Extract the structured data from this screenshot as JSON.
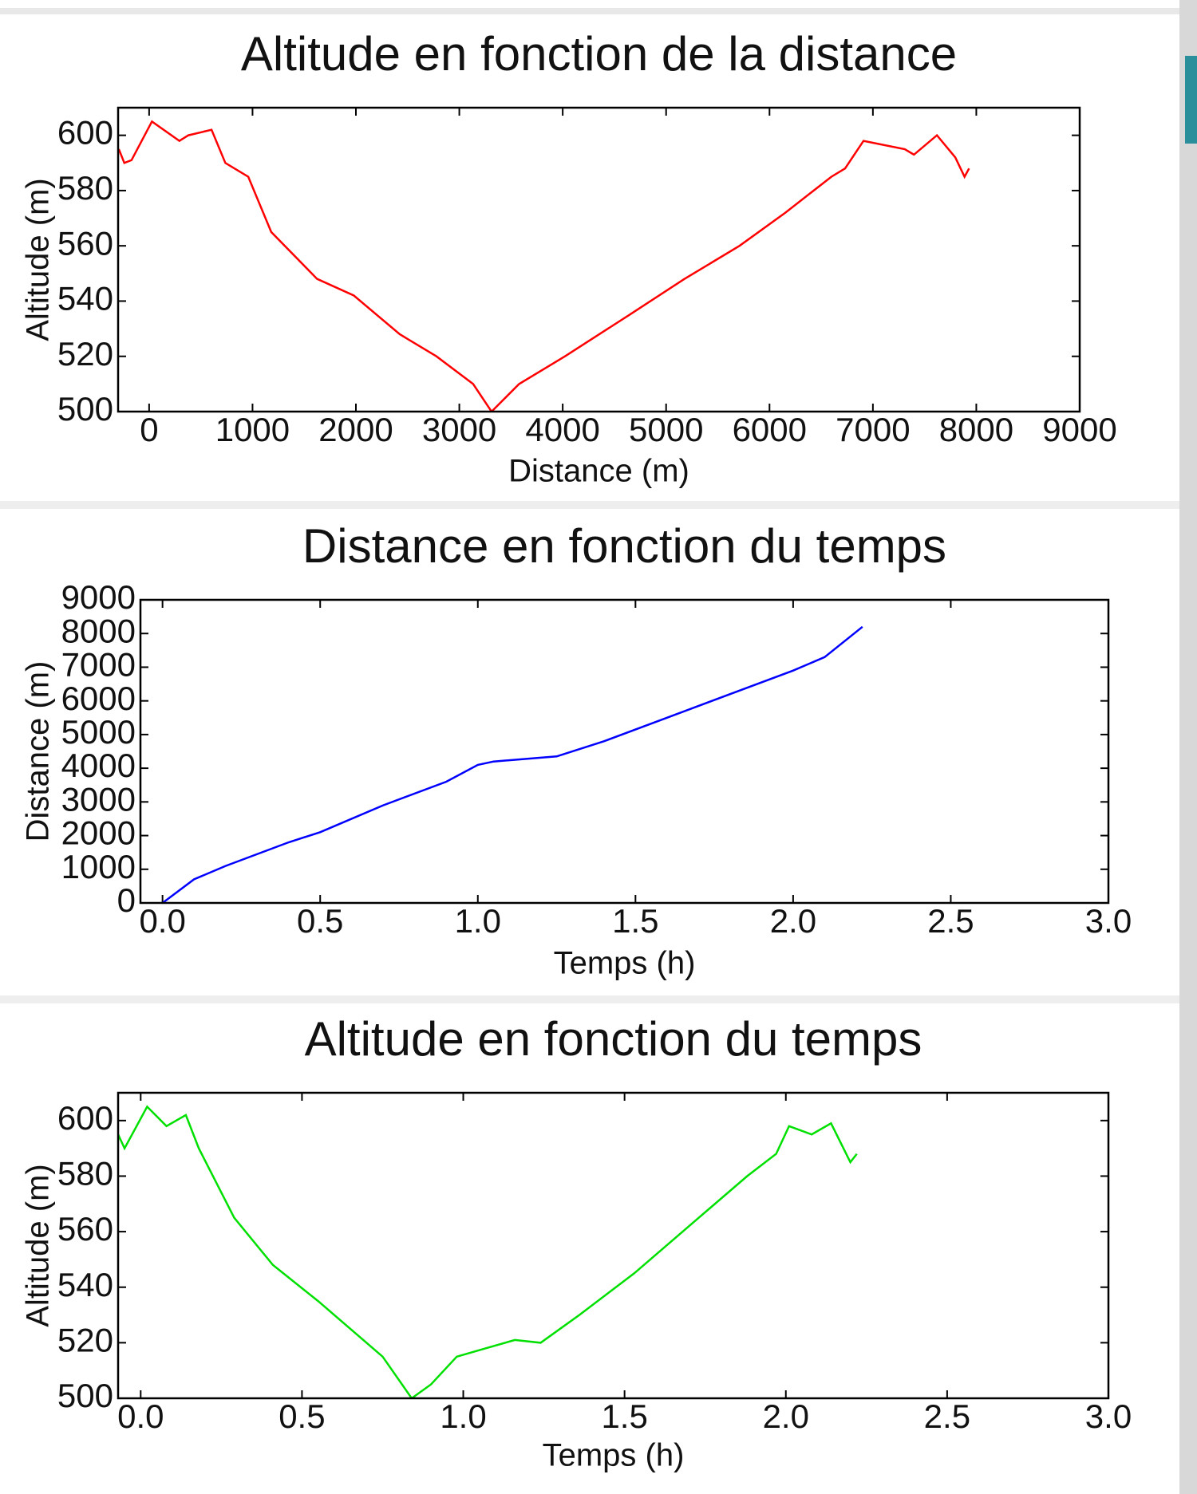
{
  "chart_data": [
    {
      "type": "line",
      "title": "Altitude en fonction de la distance",
      "x_label": "Distance (m)",
      "y_label": "Altitude (m)",
      "xlim": [
        -300,
        9000
      ],
      "ylim": [
        500,
        610
      ],
      "xticks": [
        0,
        1000,
        2000,
        3000,
        4000,
        5000,
        6000,
        7000,
        8000,
        9000
      ],
      "yticks": [
        500,
        520,
        540,
        560,
        580,
        600
      ],
      "x": [
        -293,
        -240,
        -170,
        27,
        293,
        380,
        604,
        737,
        959,
        1181,
        1625,
        1980,
        2424,
        2779,
        3134,
        3312,
        3578,
        4022,
        4644,
        5177,
        5710,
        6154,
        6598,
        6731,
        6909,
        7308,
        7397,
        7619,
        7797,
        7886,
        7930
      ],
      "series": [
        {
          "color": "#ff0000",
          "values": [
            595,
            590,
            591,
            605,
            598,
            600,
            602,
            590,
            585,
            565,
            548,
            542,
            528,
            520,
            510,
            500,
            510,
            520,
            535,
            548,
            560,
            572,
            585,
            588,
            598,
            595,
            593,
            600,
            592,
            585,
            588
          ]
        }
      ]
    },
    {
      "type": "line",
      "title": "Distance en fonction du temps",
      "x_label": "Temps (h)",
      "y_label": "Distance (m)",
      "xlim": [
        -0.07,
        3.0
      ],
      "ylim": [
        0,
        9000
      ],
      "xticks": [
        {
          "value": 0,
          "label": "0.0"
        },
        0.5,
        {
          "value": 1,
          "label": "1.0"
        },
        1.5,
        {
          "value": 2,
          "label": "2.0"
        },
        2.5,
        {
          "value": 3,
          "label": "3.0"
        }
      ],
      "yticks": [
        0,
        1000,
        2000,
        3000,
        4000,
        5000,
        6000,
        7000,
        8000,
        9000
      ],
      "x": [
        0,
        0.1,
        0.2,
        0.4,
        0.5,
        0.7,
        0.9,
        1.0,
        1.05,
        1.25,
        1.4,
        1.6,
        1.8,
        2.0,
        2.1,
        2.22
      ],
      "series": [
        {
          "color": "#0000ff",
          "values": [
            0,
            700,
            1100,
            1800,
            2100,
            2900,
            3600,
            4100,
            4200,
            4350,
            4800,
            5500,
            6200,
            6900,
            7300,
            8200
          ]
        }
      ]
    },
    {
      "type": "line",
      "title": "Altitude en fonction du temps",
      "x_label": "Temps (h)",
      "y_label": "Altitude (m)",
      "xlim": [
        -0.07,
        3.0
      ],
      "ylim": [
        500,
        610
      ],
      "xticks": [
        {
          "value": 0,
          "label": "0.0"
        },
        0.5,
        {
          "value": 1,
          "label": "1.0"
        },
        1.5,
        {
          "value": 2,
          "label": "2.0"
        },
        2.5,
        {
          "value": 3,
          "label": "3.0"
        }
      ],
      "yticks": [
        500,
        520,
        540,
        560,
        580,
        600
      ],
      "x": [
        -0.07,
        -0.05,
        0.02,
        0.08,
        0.14,
        0.18,
        0.29,
        0.41,
        0.55,
        0.75,
        0.84,
        0.9,
        0.98,
        1.07,
        1.16,
        1.24,
        1.36,
        1.53,
        1.73,
        1.88,
        1.97,
        2.01,
        2.08,
        2.14,
        2.2,
        2.22
      ],
      "series": [
        {
          "color": "#00e000",
          "values": [
            595,
            590,
            605,
            598,
            602,
            590,
            565,
            548,
            535,
            515,
            500,
            505,
            515,
            518,
            521,
            520,
            530,
            545,
            565,
            580,
            588,
            598,
            595,
            599,
            585,
            588
          ]
        }
      ]
    }
  ]
}
